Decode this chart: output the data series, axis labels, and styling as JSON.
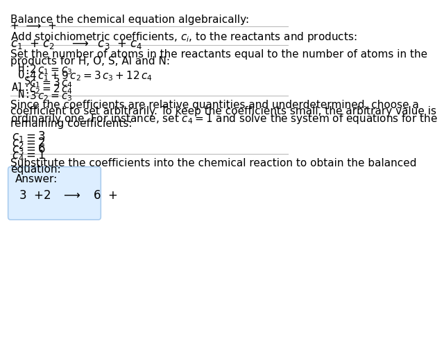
{
  "bg_color": "#ffffff",
  "text_color": "#000000",
  "answer_box_color": "#ddeeff",
  "answer_box_edge": "#aaccee",
  "title_line1": "Balance the chemical equation algebraically:",
  "title_line2": "+  ⟶  +",
  "coeff_intro": "Add stoichiometric coefficients, $c_i$, to the reactants and products:",
  "coeff_eq": "$c_1$  $+$ $c_2$    $\\longrightarrow$  $c_3$  $+$ $c_4$",
  "atoms_intro1": "Set the number of atoms in the reactants equal to the number of atoms in the",
  "atoms_intro2": "products for H, O, S, Al and N:",
  "eq_labels": [
    " H:",
    " O:",
    "  S:",
    "Al:",
    " N:"
  ],
  "eq_exprs": [
    "$2\\,c_1 = c_3$",
    "$4\\,c_1 + 9\\,c_2 = 3\\,c_3 + 12\\,c_4$",
    "$c_1 = 3\\,c_4$",
    "$c_2 = 2\\,c_4$",
    "$3\\,c_2 = c_3$"
  ],
  "para_lines": [
    "Since the coefficients are relative quantities and underdetermined, choose a",
    "coefficient to set arbitrarily. To keep the coefficients small, the arbitrary value is",
    "ordinarily one. For instance, set $c_4 = 1$ and solve the system of equations for the",
    "remaining coefficients:"
  ],
  "sol_lines": [
    "$c_1 = 3$",
    "$c_2 = 2$",
    "$c_3 = 6$",
    "$c_4 = 1$"
  ],
  "subst_line1": "Substitute the coefficients into the chemical reaction to obtain the balanced",
  "subst_line2": "equation:",
  "answer_label": "Answer:",
  "answer_eq": "$3$  $+2$   $\\longrightarrow$   $6$  $+$",
  "rule_color": "#bbbbbb",
  "rule_lw": 0.8
}
